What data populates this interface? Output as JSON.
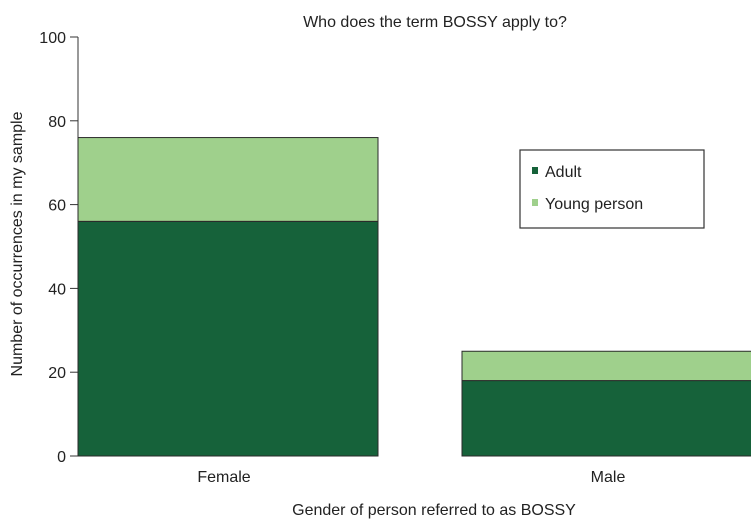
{
  "chart_data": {
    "type": "bar",
    "stacked": true,
    "title": "Who does the term BOSSY apply to?",
    "xlabel": "Gender of person referred to as BOSSY",
    "ylabel": "Number of occurrences in my sample",
    "categories": [
      "Female",
      "Male"
    ],
    "series": [
      {
        "name": "Adult",
        "values": [
          56,
          18
        ],
        "color": "#16623a"
      },
      {
        "name": "Young person",
        "values": [
          20,
          7
        ],
        "color": "#9fd08c"
      }
    ],
    "ylim": [
      0,
      100
    ],
    "yticks": [
      0,
      20,
      40,
      60,
      80,
      100
    ],
    "grid": false,
    "legend_position": "right"
  }
}
